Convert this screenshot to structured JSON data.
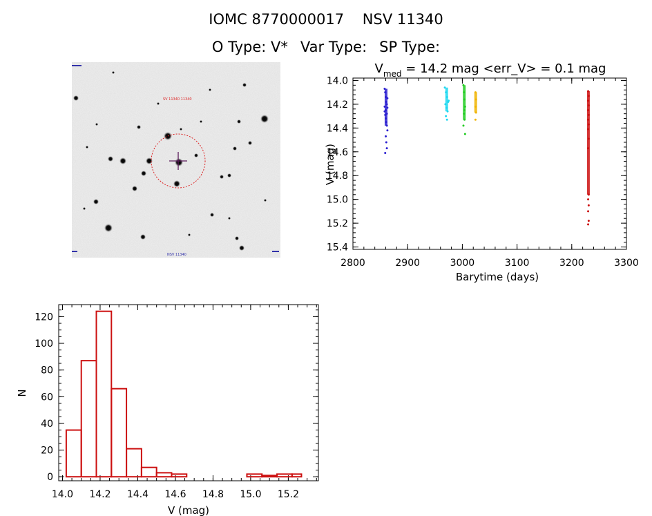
{
  "header": {
    "object_id": "IOMC 8770000017",
    "alt_name": "NSV 11340",
    "o_type": "O Type: V*",
    "var_type": "Var Type:",
    "sp_type": "SP Type:"
  },
  "finder": {
    "label_top": "SV 11340 11340",
    "label_bottom": "NSV 11340"
  },
  "chart_data": [
    {
      "type": "scatter",
      "title": "V_med = 14.2 mag <err_V> = 0.1 mag",
      "title_parts": {
        "prefix": "V",
        "subscript": "med",
        "rest": " = 14.2 mag <err_V> = 0.1 mag"
      },
      "xlabel": "Barytime (days)",
      "ylabel": "V (mag)",
      "xlim": [
        2800,
        3300
      ],
      "ylim": [
        15.42,
        13.98
      ],
      "xticks": [
        2800,
        2900,
        3000,
        3100,
        3200,
        3300
      ],
      "yticks": [
        "14.0",
        "14.2",
        "14.4",
        "14.6",
        "14.8",
        "15.0",
        "15.2",
        "15.4"
      ],
      "series": [
        {
          "color": "#2a1fd0",
          "points": [
            [
              2858,
              14.07
            ],
            [
              2859,
              14.1
            ],
            [
              2860,
              14.14
            ],
            [
              2861,
              14.18
            ],
            [
              2862,
              14.2
            ],
            [
              2863,
              14.23
            ],
            [
              2858,
              14.26
            ],
            [
              2859,
              14.29
            ],
            [
              2860,
              14.32
            ],
            [
              2861,
              14.35
            ],
            [
              2862,
              14.38
            ],
            [
              2863,
              14.42
            ],
            [
              2860,
              14.47
            ],
            [
              2861,
              14.52
            ],
            [
              2862,
              14.57
            ],
            [
              2859,
              14.61
            ],
            [
              2863,
              14.15
            ],
            [
              2858,
              14.22
            ],
            [
              2862,
              14.28
            ],
            [
              2860,
              14.25
            ]
          ]
        },
        {
          "color": "#1fd8f0",
          "points": [
            [
              2968,
              14.06
            ],
            [
              2970,
              14.1
            ],
            [
              2972,
              14.14
            ],
            [
              2974,
              14.18
            ],
            [
              2969,
              14.2
            ],
            [
              2971,
              14.23
            ],
            [
              2973,
              14.26
            ],
            [
              2970,
              14.3
            ],
            [
              2972,
              14.33
            ],
            [
              2975,
              14.17
            ]
          ]
        },
        {
          "color": "#22cc22",
          "points": [
            [
              3002,
              14.04
            ],
            [
              3003,
              14.1
            ],
            [
              3004,
              14.16
            ],
            [
              3005,
              14.22
            ],
            [
              3003,
              14.28
            ],
            [
              3004,
              14.33
            ],
            [
              3002,
              14.38
            ],
            [
              3005,
              14.45
            ],
            [
              3004,
              14.25
            ]
          ]
        },
        {
          "color": "#f0b400",
          "points": [
            [
              3024,
              14.1
            ],
            [
              3025,
              14.16
            ],
            [
              3024,
              14.22
            ],
            [
              3025,
              14.27
            ],
            [
              3024,
              14.33
            ]
          ]
        },
        {
          "color": "#cc1111",
          "points": [
            [
              3230,
              14.09
            ],
            [
              3231,
              14.13
            ],
            [
              3230,
              14.17
            ],
            [
              3231,
              14.21
            ],
            [
              3230,
              14.25
            ],
            [
              3231,
              14.29
            ],
            [
              3230,
              14.33
            ],
            [
              3231,
              14.37
            ],
            [
              3230,
              14.41
            ],
            [
              3231,
              14.49
            ],
            [
              3230,
              14.57
            ],
            [
              3231,
              14.96
            ],
            [
              3230,
              15.0
            ],
            [
              3231,
              15.05
            ],
            [
              3230,
              15.1
            ],
            [
              3231,
              15.18
            ],
            [
              3230,
              15.21
            ]
          ]
        }
      ]
    },
    {
      "type": "bar",
      "title": "",
      "xlabel": "V (mag)",
      "ylabel": "N",
      "xlim": [
        13.98,
        15.36
      ],
      "ylim": [
        -3,
        129
      ],
      "xticks": [
        "14.0",
        "14.2",
        "14.4",
        "14.6",
        "14.8",
        "15.0",
        "15.2"
      ],
      "yticks": [
        "0",
        "20",
        "40",
        "60",
        "80",
        "100",
        "120"
      ],
      "bin_edges": [
        14.02,
        14.1,
        14.18,
        14.26,
        14.34,
        14.42,
        14.5,
        14.58,
        14.66,
        14.74,
        14.82,
        14.9,
        14.98,
        15.06,
        15.14,
        15.22,
        15.27
      ],
      "values": [
        35,
        87,
        124,
        66,
        21,
        7,
        3,
        2,
        0,
        0,
        0,
        0,
        2,
        1,
        2,
        2
      ],
      "color": "#cc1111"
    }
  ]
}
